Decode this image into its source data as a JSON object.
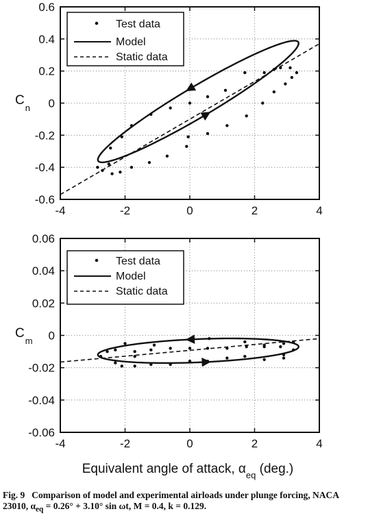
{
  "chart_data": [
    {
      "type": "scatter",
      "ylabel": "C_n",
      "xlim": [
        -4,
        4
      ],
      "ylim": [
        -0.6,
        0.6
      ],
      "x_ticks": [
        "-4",
        "-2",
        "0",
        "2",
        "4"
      ],
      "y_ticks": [
        "0.6",
        "0.4",
        "0.2",
        "0",
        "-0.2",
        "-0.4",
        "-0.6"
      ],
      "legend": {
        "position": "top-left",
        "entries": [
          "Test data",
          "Model",
          "Static data"
        ]
      },
      "series": [
        {
          "name": "Test data",
          "kind": "points",
          "points": [
            [
              -2.85,
              -0.4
            ],
            [
              -2.7,
              -0.42
            ],
            [
              -2.5,
              -0.38
            ],
            [
              -2.4,
              -0.44
            ],
            [
              -2.15,
              -0.43
            ],
            [
              -2.45,
              -0.28
            ],
            [
              -2.1,
              -0.21
            ],
            [
              -1.8,
              -0.4
            ],
            [
              -1.25,
              -0.37
            ],
            [
              -0.7,
              -0.33
            ],
            [
              -0.1,
              -0.27
            ],
            [
              -1.8,
              -0.14
            ],
            [
              -1.2,
              -0.07
            ],
            [
              -0.05,
              -0.21
            ],
            [
              0.55,
              -0.19
            ],
            [
              1.15,
              -0.14
            ],
            [
              1.75,
              -0.08
            ],
            [
              2.25,
              0.0
            ],
            [
              -0.6,
              -0.03
            ],
            [
              0.0,
              0.0
            ],
            [
              0.55,
              0.04
            ],
            [
              1.1,
              0.08
            ],
            [
              1.7,
              0.19
            ],
            [
              2.3,
              0.19
            ],
            [
              2.6,
              0.07
            ],
            [
              2.95,
              0.12
            ],
            [
              3.15,
              0.16
            ],
            [
              3.3,
              0.19
            ],
            [
              2.8,
              0.22
            ],
            [
              3.1,
              0.22
            ],
            [
              2.6,
              0.21
            ]
          ]
        },
        {
          "name": "Model",
          "kind": "loop",
          "mean_alpha": 0.26,
          "amplitude": 3.1,
          "center": 0.01,
          "slope": 0.117,
          "hysteresis": 0.11
        },
        {
          "name": "Static data",
          "kind": "line",
          "points": [
            [
              -4,
              -0.57
            ],
            [
              4,
              0.37
            ]
          ]
        }
      ]
    },
    {
      "type": "scatter",
      "xlabel": "Equivalent angle of attack, α_eq (deg.)",
      "ylabel": "C_m",
      "xlim": [
        -4,
        4
      ],
      "ylim": [
        -0.06,
        0.06
      ],
      "x_ticks": [
        "-4",
        "-2",
        "0",
        "2",
        "4"
      ],
      "y_ticks": [
        "0.06",
        "0.04",
        "0.02",
        "0",
        "-0.02",
        "-0.04",
        "-0.06"
      ],
      "legend": {
        "position": "top-left",
        "entries": [
          "Test data",
          "Model",
          "Static data"
        ]
      },
      "series": [
        {
          "name": "Test data",
          "kind": "points",
          "points": [
            [
              -2.75,
              -0.013
            ],
            [
              -2.3,
              -0.017
            ],
            [
              -2.1,
              -0.019
            ],
            [
              -1.7,
              -0.019
            ],
            [
              -1.2,
              -0.018
            ],
            [
              -0.6,
              -0.018
            ],
            [
              0.0,
              -0.016
            ],
            [
              0.55,
              -0.016
            ],
            [
              1.15,
              -0.014
            ],
            [
              1.7,
              -0.013
            ],
            [
              2.3,
              -0.015
            ],
            [
              2.9,
              -0.012
            ],
            [
              3.2,
              -0.009
            ],
            [
              -2.55,
              -0.01
            ],
            [
              -2.3,
              -0.009
            ],
            [
              -1.7,
              -0.01
            ],
            [
              -1.2,
              -0.009
            ],
            [
              -0.6,
              -0.008
            ],
            [
              0.0,
              -0.008
            ],
            [
              0.55,
              -0.008
            ],
            [
              1.15,
              -0.008
            ],
            [
              1.75,
              -0.007
            ],
            [
              2.3,
              -0.007
            ],
            [
              2.9,
              -0.005
            ],
            [
              3.2,
              -0.004
            ],
            [
              -2.0,
              -0.005
            ],
            [
              -1.1,
              -0.006
            ],
            [
              0.6,
              -0.002
            ],
            [
              1.7,
              -0.004
            ],
            [
              2.3,
              -0.006
            ],
            [
              2.8,
              -0.007
            ],
            [
              -1.7,
              -0.013
            ],
            [
              2.9,
              -0.014
            ]
          ]
        },
        {
          "name": "Model",
          "kind": "loop",
          "mean_alpha": 0.26,
          "amplitude": 3.1,
          "center": -0.0095,
          "slope": 0.0008,
          "hysteresis": 0.0072
        },
        {
          "name": "Static data",
          "kind": "line",
          "points": [
            [
              -4,
              -0.0165
            ],
            [
              4,
              -0.002
            ]
          ]
        }
      ]
    }
  ],
  "legend": {
    "test": "Test data",
    "model": "Model",
    "static": "Static data"
  },
  "top": {
    "ylabel_main": "C",
    "ylabel_sub": "n"
  },
  "bottom": {
    "ylabel_main": "C",
    "ylabel_sub": "m",
    "xlabel_main": "Equivalent angle of attack, α",
    "xlabel_sub": "eq",
    "xlabel_tail": " (deg.)"
  },
  "caption": {
    "label": "Fig. 9",
    "text": "Comparison of model and experimental airloads under plunge forcing, NACA 23010, α",
    "sub": "eq",
    "tail": " = 0.26° + 3.10° sin ωt, M = 0.4, k = 0.129."
  }
}
